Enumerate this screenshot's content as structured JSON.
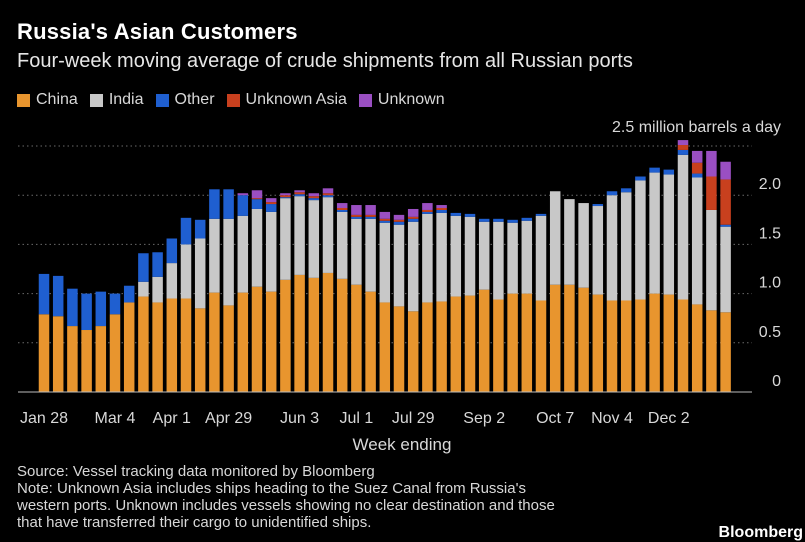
{
  "header": {
    "title": "Russia's Asian Customers",
    "subtitle": "Four-week moving average of crude shipments from all Russian ports"
  },
  "legend": [
    {
      "label": "China",
      "color": "#e8952e"
    },
    {
      "label": "India",
      "color": "#c8c8c8"
    },
    {
      "label": "Other",
      "color": "#1f5fd0"
    },
    {
      "label": "Unknown Asia",
      "color": "#c8401e"
    },
    {
      "label": "Unknown",
      "color": "#9a4fc2"
    }
  ],
  "chart_data": {
    "type": "bar",
    "stacked": true,
    "unit_label": "2.5 million barrels a day",
    "xlabel": "Week ending",
    "ylim": [
      0,
      2.5
    ],
    "yticks": [
      "0",
      "0.5",
      "1.0",
      "1.5",
      "2.0"
    ],
    "x_tick_labels": [
      {
        "label": "Jan 28",
        "index": 0
      },
      {
        "label": "Mar 4",
        "index": 5
      },
      {
        "label": "Apr 1",
        "index": 9
      },
      {
        "label": "Apr 29",
        "index": 13
      },
      {
        "label": "Jun 3",
        "index": 18
      },
      {
        "label": "Jul 1",
        "index": 22
      },
      {
        "label": "Jul 29",
        "index": 26
      },
      {
        "label": "Sep 2",
        "index": 31
      },
      {
        "label": "Oct 7",
        "index": 36
      },
      {
        "label": "Nov 4",
        "index": 40
      },
      {
        "label": "Dec 2",
        "index": 44
      }
    ],
    "grid": true,
    "series": [
      {
        "name": "China",
        "color": "#e8952e",
        "values": [
          0.79,
          0.77,
          0.67,
          0.63,
          0.67,
          0.79,
          0.91,
          0.97,
          0.91,
          0.95,
          0.95,
          0.85,
          1.01,
          0.88,
          1.01,
          1.07,
          1.02,
          1.14,
          1.19,
          1.16,
          1.21,
          1.15,
          1.09,
          1.02,
          0.91,
          0.87,
          0.82,
          0.91,
          0.92,
          0.97,
          0.98,
          1.04,
          0.94,
          1.0,
          1.0,
          0.93,
          1.09,
          1.09,
          1.06,
          0.99,
          0.93,
          0.93,
          0.94,
          1.0,
          0.99,
          0.94,
          0.89,
          0.83,
          0.81
        ]
      },
      {
        "name": "India",
        "color": "#c8c8c8",
        "values": [
          0.0,
          0.0,
          0.0,
          0.0,
          0.0,
          0.0,
          0.0,
          0.15,
          0.26,
          0.36,
          0.55,
          0.71,
          0.75,
          0.88,
          0.78,
          0.79,
          0.81,
          0.83,
          0.8,
          0.79,
          0.77,
          0.68,
          0.67,
          0.74,
          0.81,
          0.83,
          0.91,
          0.9,
          0.9,
          0.82,
          0.8,
          0.69,
          0.79,
          0.72,
          0.74,
          0.86,
          0.95,
          0.87,
          0.86,
          0.9,
          1.07,
          1.1,
          1.21,
          1.23,
          1.22,
          1.47,
          1.29,
          1.02,
          0.87
        ]
      },
      {
        "name": "Other",
        "color": "#1f5fd0",
        "values": [
          0.41,
          0.41,
          0.38,
          0.37,
          0.35,
          0.21,
          0.17,
          0.29,
          0.25,
          0.25,
          0.27,
          0.19,
          0.3,
          0.3,
          0.21,
          0.1,
          0.08,
          0.01,
          0.02,
          0.02,
          0.02,
          0.02,
          0.02,
          0.02,
          0.02,
          0.03,
          0.03,
          0.02,
          0.03,
          0.03,
          0.03,
          0.03,
          0.03,
          0.03,
          0.03,
          0.02,
          0.0,
          0.0,
          0.0,
          0.02,
          0.04,
          0.04,
          0.04,
          0.05,
          0.05,
          0.05,
          0.04,
          0.0,
          0.02
        ]
      },
      {
        "name": "Unknown Asia",
        "color": "#c8401e",
        "values": [
          0.0,
          0.0,
          0.0,
          0.0,
          0.0,
          0.0,
          0.0,
          0.0,
          0.0,
          0.0,
          0.0,
          0.0,
          0.0,
          0.0,
          0.0,
          0.01,
          0.02,
          0.02,
          0.02,
          0.02,
          0.02,
          0.02,
          0.02,
          0.02,
          0.02,
          0.02,
          0.02,
          0.02,
          0.02,
          0.0,
          0.0,
          0.0,
          0.0,
          0.0,
          0.0,
          0.0,
          0.0,
          0.0,
          0.0,
          0.0,
          0.0,
          0.0,
          0.0,
          0.0,
          0.0,
          0.05,
          0.11,
          0.34,
          0.46
        ]
      },
      {
        "name": "Unknown",
        "color": "#9a4fc2",
        "values": [
          0.0,
          0.0,
          0.0,
          0.0,
          0.0,
          0.0,
          0.0,
          0.0,
          0.0,
          0.0,
          0.0,
          0.0,
          0.0,
          0.0,
          0.02,
          0.08,
          0.04,
          0.02,
          0.02,
          0.03,
          0.05,
          0.05,
          0.1,
          0.1,
          0.07,
          0.05,
          0.08,
          0.07,
          0.03,
          0.0,
          0.0,
          0.0,
          0.0,
          0.0,
          0.0,
          0.0,
          0.0,
          0.0,
          0.0,
          0.0,
          0.0,
          0.0,
          0.0,
          0.0,
          0.0,
          0.05,
          0.12,
          0.26,
          0.18
        ]
      }
    ]
  },
  "footer": {
    "source": "Source: Vessel tracking data monitored by Bloomberg",
    "note_lines": [
      "Note: Unknown Asia includes ships heading to the Suez Canal from Russia's",
      "western ports. Unknown includes vessels showing no clear destination and those",
      "that have transferred their cargo to unidentified ships."
    ],
    "brand": "Bloomberg"
  }
}
